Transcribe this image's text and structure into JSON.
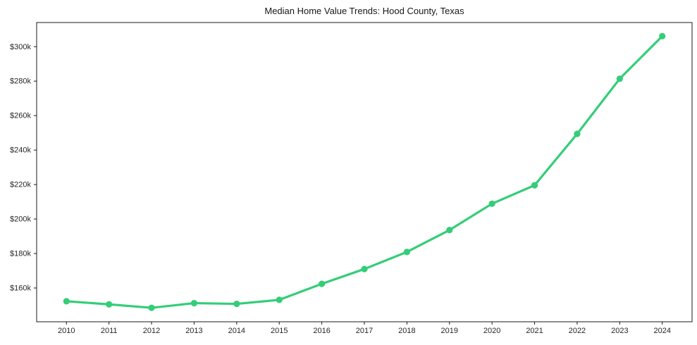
{
  "chart_data": {
    "type": "line",
    "title": "Median Home Value Trends: Hood County, Texas",
    "series_name": "Median Home Value",
    "x": [
      2010,
      2011,
      2012,
      2013,
      2014,
      2015,
      2016,
      2017,
      2018,
      2019,
      2020,
      2021,
      2022,
      2023,
      2024
    ],
    "values": [
      152300,
      150500,
      148500,
      151200,
      150800,
      153100,
      162400,
      171000,
      180900,
      193600,
      208900,
      219600,
      249400,
      281400,
      306100
    ],
    "xtick_labels": [
      "2010",
      "2011",
      "2012",
      "2013",
      "2014",
      "2015",
      "2016",
      "2017",
      "2018",
      "2019",
      "2020",
      "2021",
      "2022",
      "2023",
      "2024"
    ],
    "ytick_values": [
      160000,
      180000,
      200000,
      220000,
      240000,
      260000,
      280000,
      300000
    ],
    "ytick_labels": [
      "$160k",
      "$180k",
      "$200k",
      "$220k",
      "$240k",
      "$260k",
      "$280k",
      "$300k"
    ],
    "xlim": [
      2009.3,
      2024.7
    ],
    "ylim": [
      140400,
      314000
    ],
    "xlabel": "",
    "ylabel": "",
    "grid": false,
    "legend": false,
    "line_color": "#34cd78",
    "marker": "circle",
    "spine_color": "#1a1a1a",
    "background_color": "#ffffff"
  }
}
